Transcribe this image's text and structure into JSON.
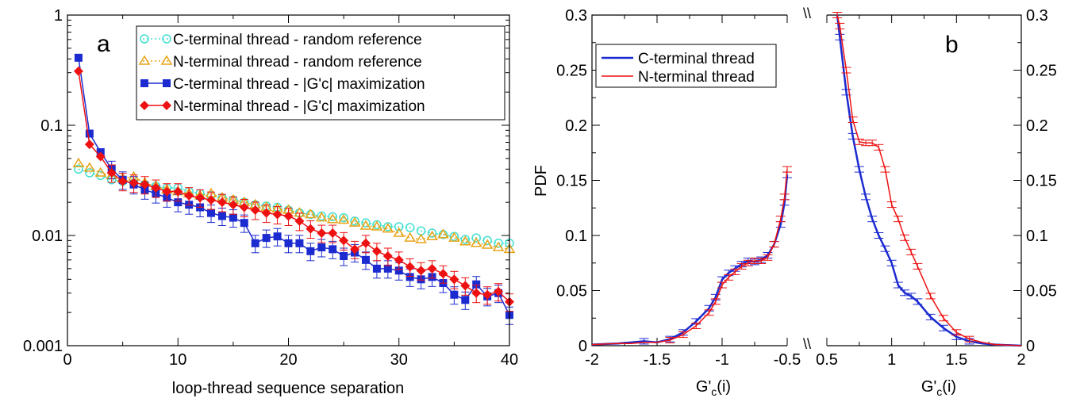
{
  "chart_data": [
    {
      "type": "line",
      "panel_label": "a",
      "xlabel": "loop-thread sequence separation",
      "ylabel": "",
      "xlim": [
        0,
        40
      ],
      "ylim": [
        0.001,
        1
      ],
      "yscale": "log",
      "x_ticks": [
        0,
        10,
        20,
        30,
        40
      ],
      "x_tick_labels": [
        "0",
        "10",
        "20",
        "30",
        "40"
      ],
      "y_ticks": [
        0.001,
        0.01,
        0.1,
        1
      ],
      "y_tick_labels": [
        "0.001",
        "0.01",
        "0.1",
        "1"
      ],
      "grid": false,
      "legend_position": "top-right",
      "x": [
        1,
        2,
        3,
        4,
        5,
        6,
        7,
        8,
        9,
        10,
        11,
        12,
        13,
        14,
        15,
        16,
        17,
        18,
        19,
        20,
        21,
        22,
        23,
        24,
        25,
        26,
        27,
        28,
        29,
        30,
        31,
        32,
        33,
        34,
        35,
        36,
        37,
        38,
        39,
        40
      ],
      "series": [
        {
          "name": "C-terminal thread - random reference",
          "color": "#40e0d0",
          "marker": "circle-open",
          "values": [
            0.04,
            0.037,
            0.035,
            0.032,
            0.031,
            0.03,
            0.029,
            0.028,
            0.027,
            0.027,
            0.025,
            0.024,
            0.023,
            0.022,
            0.021,
            0.02,
            0.019,
            0.0185,
            0.018,
            0.017,
            0.016,
            0.0155,
            0.015,
            0.0148,
            0.0145,
            0.0135,
            0.013,
            0.0125,
            0.012,
            0.012,
            0.0118,
            0.011,
            0.0105,
            0.0102,
            0.0098,
            0.0092,
            0.0095,
            0.009,
            0.0085,
            0.0085
          ]
        },
        {
          "name": "N-terminal thread - random reference",
          "color": "#e8a317",
          "marker": "triangle-open",
          "values": [
            0.045,
            0.041,
            0.037,
            0.035,
            0.033,
            0.034,
            0.03,
            0.028,
            0.026,
            0.025,
            0.024,
            0.023,
            0.024,
            0.022,
            0.021,
            0.02,
            0.019,
            0.018,
            0.0175,
            0.017,
            0.016,
            0.0155,
            0.0145,
            0.014,
            0.0138,
            0.013,
            0.0122,
            0.012,
            0.0115,
            0.0105,
            0.0095,
            0.0092,
            0.0098,
            0.0102,
            0.0095,
            0.0088,
            0.0085,
            0.0082,
            0.0078,
            0.0075
          ]
        },
        {
          "name": "C-terminal thread - |G'c| maximization",
          "color": "#1c2bd0",
          "marker": "square-filled",
          "values": [
            0.41,
            0.084,
            0.057,
            0.04,
            0.032,
            0.029,
            0.026,
            0.024,
            0.022,
            0.02,
            0.019,
            0.018,
            0.016,
            0.015,
            0.0145,
            0.013,
            0.0085,
            0.0095,
            0.0098,
            0.0085,
            0.0085,
            0.0072,
            0.0078,
            0.0075,
            0.0065,
            0.007,
            0.006,
            0.005,
            0.005,
            0.0048,
            0.0042,
            0.004,
            0.0042,
            0.0037,
            0.0029,
            0.0026,
            0.0036,
            0.0028,
            0.003,
            0.0019
          ]
        },
        {
          "name": "N-terminal thread - |G'c| maximization",
          "color": "#ee1111",
          "marker": "diamond-filled",
          "values": [
            0.31,
            0.067,
            0.052,
            0.037,
            0.031,
            0.03,
            0.029,
            0.027,
            0.025,
            0.025,
            0.023,
            0.022,
            0.021,
            0.02,
            0.019,
            0.018,
            0.017,
            0.016,
            0.0155,
            0.015,
            0.0135,
            0.0115,
            0.0105,
            0.0105,
            0.009,
            0.0075,
            0.0085,
            0.0072,
            0.0065,
            0.006,
            0.0052,
            0.0048,
            0.005,
            0.0045,
            0.004,
            0.0035,
            0.003,
            0.0029,
            0.0031,
            0.0025
          ]
        }
      ]
    },
    {
      "type": "line",
      "panel_label": "b",
      "xlabel": "G'c(i)",
      "xlabel_main": "G'",
      "xlabel_sub": "c",
      "xlabel_tail": "(i)",
      "ylabel": "PDF",
      "axis_break": true,
      "left_xlim": [
        -2,
        -0.5
      ],
      "right_xlim": [
        0.5,
        2
      ],
      "ylim": [
        0,
        0.3
      ],
      "left_x_ticks": [
        -2,
        -1.5,
        -1,
        -0.5
      ],
      "left_x_tick_labels": [
        "-2",
        "-1.5",
        "-1",
        "-0.5"
      ],
      "right_x_ticks": [
        0.5,
        1,
        1.5,
        2
      ],
      "right_x_tick_labels": [
        "0.5",
        "1",
        "1.5",
        "2"
      ],
      "y_ticks": [
        0,
        0.05,
        0.1,
        0.15,
        0.2,
        0.25,
        0.3
      ],
      "y_tick_labels": [
        "0",
        "0.05",
        "0.1",
        "0.15",
        "0.2",
        "0.25",
        "0.3"
      ],
      "break_mark": "\\\\",
      "grid": false,
      "legend_position": "top-left",
      "series": [
        {
          "name": "C-terminal thread",
          "color": "#1c2bd0",
          "left": {
            "x": [
              -2.0,
              -1.8,
              -1.7,
              -1.6,
              -1.5,
              -1.4,
              -1.3,
              -1.2,
              -1.1,
              -1.05,
              -1.0,
              -0.95,
              -0.9,
              -0.85,
              -0.8,
              -0.75,
              -0.7,
              -0.65,
              -0.6,
              -0.55,
              -0.52,
              -0.5
            ],
            "y": [
              0.001,
              0.002,
              0.003,
              0.004,
              0.003,
              0.006,
              0.012,
              0.022,
              0.034,
              0.044,
              0.06,
              0.066,
              0.07,
              0.074,
              0.077,
              0.076,
              0.078,
              0.082,
              0.092,
              0.11,
              0.13,
              0.155
            ]
          },
          "right": {
            "x": [
              0.58,
              0.6,
              0.65,
              0.7,
              0.75,
              0.8,
              0.85,
              0.9,
              0.95,
              1.0,
              1.05,
              1.1,
              1.15,
              1.2,
              1.3,
              1.4,
              1.5,
              1.6,
              1.7,
              1.8,
              2.0
            ],
            "y": [
              0.3,
              0.28,
              0.23,
              0.19,
              0.16,
              0.135,
              0.115,
              0.1,
              0.088,
              0.075,
              0.055,
              0.048,
              0.045,
              0.04,
              0.026,
              0.016,
              0.008,
              0.004,
              0.002,
              0.001,
              0.0
            ]
          }
        },
        {
          "name": "N-terminal thread",
          "color": "#ee1111",
          "left": {
            "x": [
              -2.0,
              -1.8,
              -1.7,
              -1.6,
              -1.5,
              -1.4,
              -1.3,
              -1.2,
              -1.1,
              -1.05,
              -1.0,
              -0.95,
              -0.9,
              -0.85,
              -0.8,
              -0.75,
              -0.7,
              -0.65,
              -0.6,
              -0.55,
              -0.52,
              -0.5
            ],
            "y": [
              0.001,
              0.002,
              0.002,
              0.003,
              0.003,
              0.005,
              0.01,
              0.018,
              0.03,
              0.04,
              0.055,
              0.062,
              0.067,
              0.072,
              0.075,
              0.077,
              0.077,
              0.08,
              0.092,
              0.115,
              0.135,
              0.16
            ]
          },
          "right": {
            "x": [
              0.58,
              0.6,
              0.65,
              0.7,
              0.75,
              0.8,
              0.85,
              0.9,
              0.95,
              1.0,
              1.05,
              1.1,
              1.15,
              1.2,
              1.3,
              1.4,
              1.5,
              1.6,
              1.7,
              1.8,
              2.0
            ],
            "y": [
              0.3,
              0.29,
              0.25,
              0.205,
              0.185,
              0.184,
              0.184,
              0.18,
              0.16,
              0.128,
              0.115,
              0.098,
              0.085,
              0.072,
              0.045,
              0.025,
              0.012,
              0.006,
              0.003,
              0.001,
              0.0
            ]
          }
        }
      ]
    }
  ]
}
